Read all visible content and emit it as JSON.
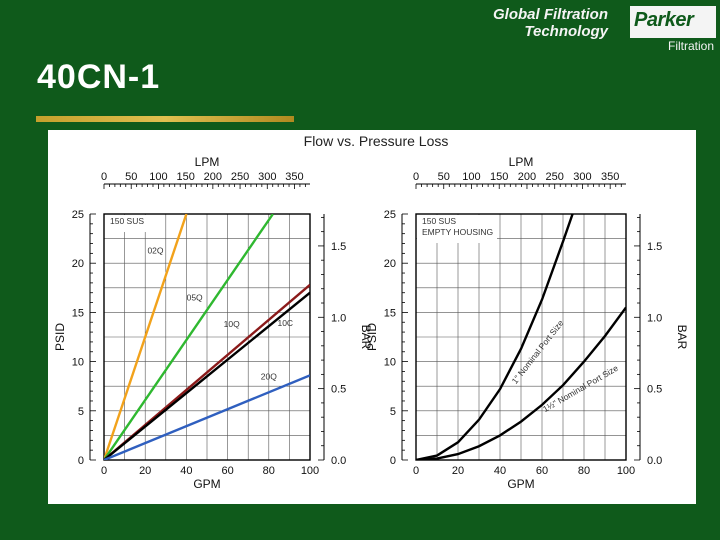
{
  "header": {
    "brand_line1": "Global Filtration",
    "brand_line2": "Technology",
    "logo_word": "Parker",
    "logo_sub": "Filtration",
    "page_title": "40CN-1"
  },
  "colors": {
    "background": "#0f5a1b",
    "accent_gold": "#c5a02c",
    "orange": "#f2a21b",
    "green": "#2fb830",
    "darkred": "#8b1a1a",
    "black": "#000000",
    "blue": "#2f5fbf"
  },
  "chart_data": [
    {
      "type": "line",
      "title": "Flow vs. Pressure Loss",
      "top_axis_label": "LPM",
      "top_ticks": [
        "0",
        "50",
        "100",
        "150",
        "200",
        "250",
        "300",
        "350"
      ],
      "top_tick_values": [
        0,
        50,
        100,
        150,
        200,
        250,
        300,
        350
      ],
      "xlabel": "GPM",
      "x_ticks": [
        "0",
        "20",
        "40",
        "60",
        "80",
        "100"
      ],
      "x_tick_values": [
        0,
        20,
        40,
        60,
        80,
        100
      ],
      "xlim": [
        0,
        100
      ],
      "ylabel": "PSID",
      "y_ticks": [
        "0",
        "5",
        "10",
        "15",
        "20",
        "25"
      ],
      "y_tick_values": [
        0,
        5,
        10,
        15,
        20,
        25
      ],
      "ylim": [
        0,
        25
      ],
      "right_axis_label": "BAR",
      "right_ticks": [
        "0.0",
        "0.5",
        "1.0",
        "1.5"
      ],
      "right_tick_values": [
        0,
        0.5,
        1.0,
        1.5
      ],
      "annotation": "150 SUS",
      "grid": true,
      "series": [
        {
          "name": "02Q",
          "color": "#f2a21b",
          "x": [
            0,
            40
          ],
          "y": [
            0,
            25
          ],
          "label_at": [
            25,
            21
          ]
        },
        {
          "name": "05Q",
          "color": "#2fb830",
          "x": [
            0,
            82
          ],
          "y": [
            0,
            25
          ],
          "label_at": [
            44,
            16.2
          ]
        },
        {
          "name": "10C",
          "color": "#8b1a1a",
          "x": [
            0,
            100
          ],
          "y": [
            0,
            17.8
          ],
          "label_at": [
            88,
            13.6
          ]
        },
        {
          "name": "10Q",
          "color": "#000000",
          "x": [
            0,
            100
          ],
          "y": [
            0,
            17.0
          ],
          "label_at": [
            62,
            13.5
          ]
        },
        {
          "name": "20Q",
          "color": "#2f5fbf",
          "x": [
            0,
            100
          ],
          "y": [
            0,
            8.6
          ],
          "label_at": [
            80,
            8.2
          ]
        }
      ]
    },
    {
      "type": "line",
      "top_axis_label": "LPM",
      "top_ticks": [
        "0",
        "50",
        "100",
        "150",
        "200",
        "250",
        "300",
        "350"
      ],
      "top_tick_values": [
        0,
        50,
        100,
        150,
        200,
        250,
        300,
        350
      ],
      "xlabel": "GPM",
      "x_ticks": [
        "0",
        "20",
        "40",
        "60",
        "80",
        "100"
      ],
      "x_tick_values": [
        0,
        20,
        40,
        60,
        80,
        100
      ],
      "xlim": [
        0,
        100
      ],
      "ylabel": "PSID",
      "y_ticks": [
        "0",
        "5",
        "10",
        "15",
        "20",
        "25"
      ],
      "y_tick_values": [
        0,
        5,
        10,
        15,
        20,
        25
      ],
      "ylim": [
        0,
        25
      ],
      "right_axis_label": "BAR",
      "right_ticks": [
        "0.0",
        "0.5",
        "1.0",
        "1.5"
      ],
      "right_tick_values": [
        0,
        0.5,
        1.0,
        1.5
      ],
      "annotation_lines": [
        "150 SUS",
        "EMPTY HOUSING"
      ],
      "grid": true,
      "series": [
        {
          "name": "1\" Nominal Port Size",
          "color": "#000000",
          "x": [
            0,
            10,
            20,
            30,
            40,
            50,
            60,
            70,
            77
          ],
          "y": [
            0,
            0.45,
            1.8,
            4.1,
            7.2,
            11.3,
            16.3,
            22.2,
            26.5
          ]
        },
        {
          "name": "1½\" Nominal Port Size",
          "color": "#000000",
          "x": [
            0,
            10,
            20,
            30,
            40,
            50,
            60,
            70,
            80,
            90,
            100
          ],
          "y": [
            0,
            0.15,
            0.6,
            1.4,
            2.5,
            3.9,
            5.6,
            7.6,
            10.0,
            12.6,
            15.5
          ]
        }
      ]
    }
  ]
}
